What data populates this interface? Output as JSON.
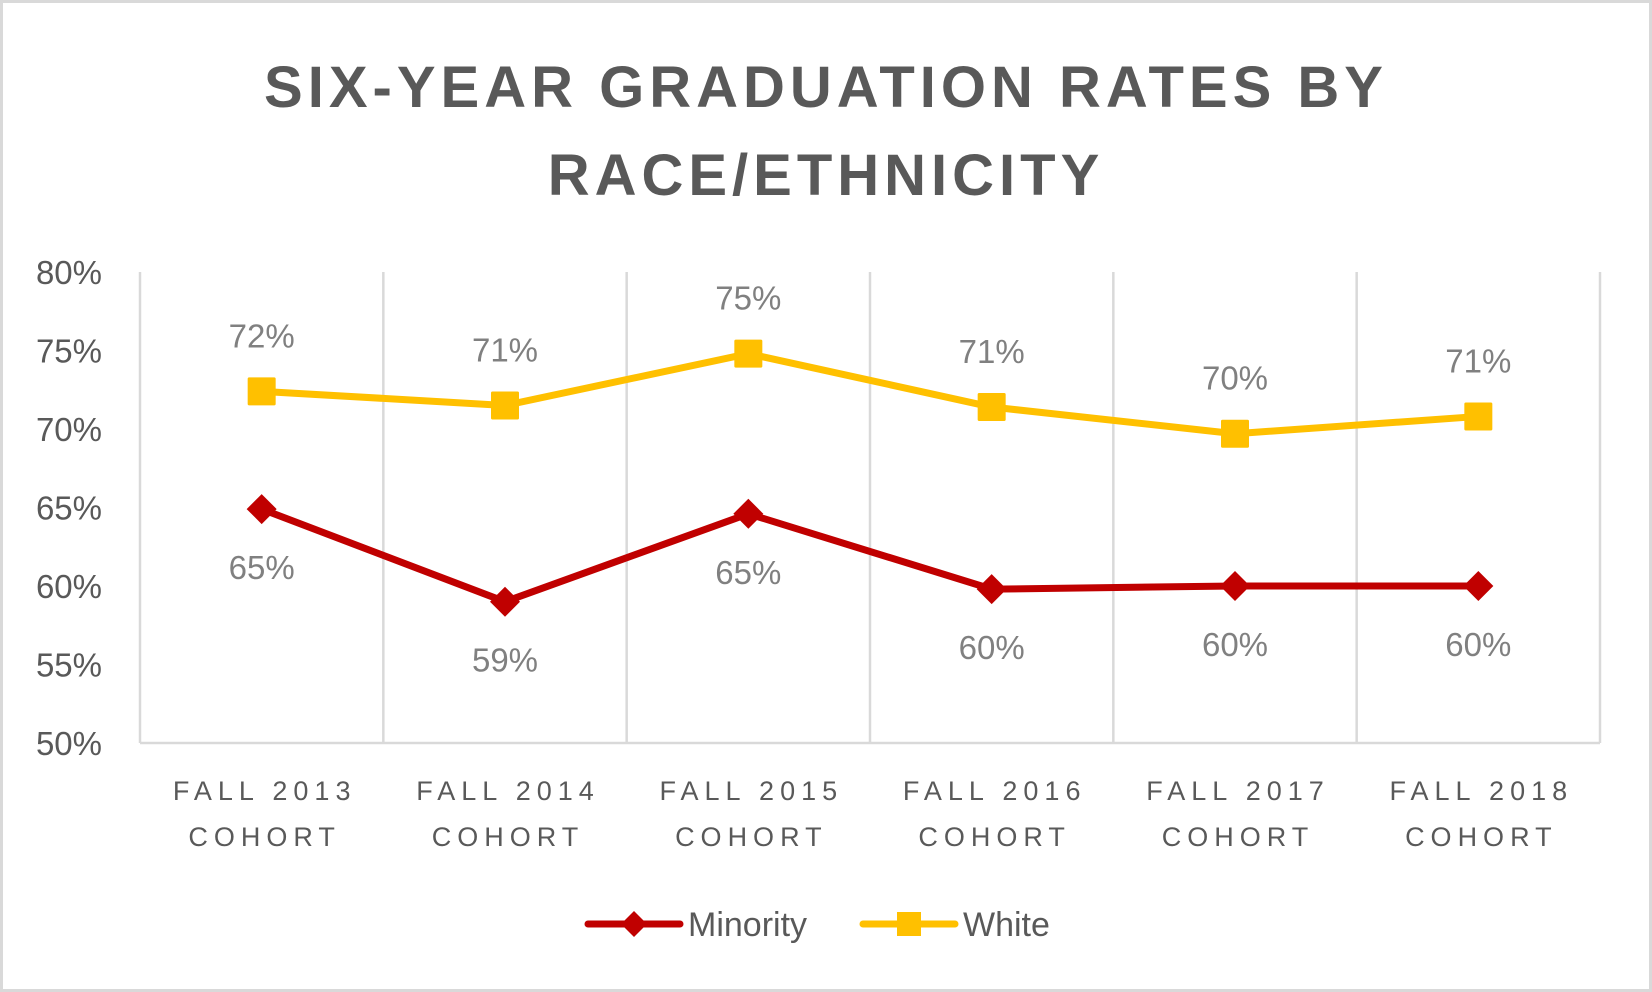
{
  "chart_data": {
    "type": "line",
    "title": [
      "SIX-YEAR GRADUATION RATES BY",
      "RACE/ETHNICITY"
    ],
    "xlabel": "",
    "ylabel": "",
    "categories": [
      [
        "FALL 2013",
        "COHORT"
      ],
      [
        "FALL 2014",
        "COHORT"
      ],
      [
        "FALL 2015",
        "COHORT"
      ],
      [
        "FALL 2016",
        "COHORT"
      ],
      [
        "FALL 2017",
        "COHORT"
      ],
      [
        "FALL 2018",
        "COHORT"
      ]
    ],
    "ylim": [
      50,
      80
    ],
    "yticks": [
      50,
      55,
      60,
      65,
      70,
      75,
      80
    ],
    "ytick_labels": [
      "50%",
      "55%",
      "60%",
      "65%",
      "70%",
      "75%",
      "80%"
    ],
    "grid": "vertical category separators",
    "legend_position": "bottom",
    "series": [
      {
        "name": "Minority",
        "color": "#c00000",
        "marker": "diamond",
        "values": [
          64.9,
          59.0,
          64.6,
          59.8,
          60.0,
          60.0
        ],
        "labels": [
          "65%",
          "59%",
          "65%",
          "60%",
          "60%",
          "60%"
        ],
        "label_position": "below"
      },
      {
        "name": "White",
        "color": "#ffc000",
        "marker": "square",
        "values": [
          72.4,
          71.5,
          74.8,
          71.4,
          69.7,
          70.8
        ],
        "labels": [
          "72%",
          "71%",
          "75%",
          "71%",
          "70%",
          "71%"
        ],
        "label_position": "above"
      }
    ]
  }
}
